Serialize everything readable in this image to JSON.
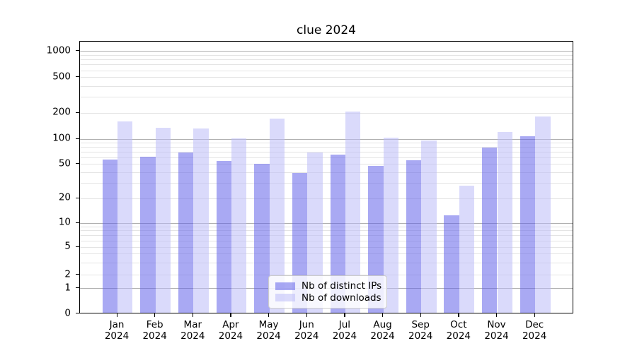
{
  "title": "clue 2024",
  "chart_data": {
    "type": "bar",
    "title": "clue 2024",
    "categories": [
      "Jan 2024",
      "Feb 2024",
      "Mar 2024",
      "Apr 2024",
      "May 2024",
      "Jun 2024",
      "Jul 2024",
      "Aug 2024",
      "Sep 2024",
      "Oct 2024",
      "Nov 2024",
      "Dec 2024"
    ],
    "series": [
      {
        "name": "Nb of distinct IPs",
        "color": "#6363e9",
        "alpha": 0.55,
        "values": [
          55,
          59,
          66,
          53,
          49,
          38,
          63,
          46,
          54,
          12,
          76,
          103
        ]
      },
      {
        "name": "Nb of downloads",
        "color": "#bbbbf7",
        "alpha": 0.55,
        "values": [
          155,
          131,
          129,
          99,
          168,
          66,
          202,
          100,
          93,
          27,
          117,
          176
        ]
      }
    ],
    "yscale": "symlog",
    "ylim": [
      0,
      1200
    ],
    "yticks": [
      0,
      1,
      2,
      5,
      10,
      20,
      50,
      100,
      200,
      500,
      1000
    ],
    "grid": "major and minor horizontal gridlines",
    "legend_position": "lower center"
  },
  "legend": {
    "items": [
      {
        "label": "Nb of distinct IPs"
      },
      {
        "label": "Nb of downloads"
      }
    ]
  },
  "colors": {
    "bar_ips_rendered": "#a9a9f3",
    "bar_downloads_rendered": "#d9d9fa",
    "grid_major": "#b0b0b0",
    "grid_minor": "#e4e4e4",
    "axis": "#000000",
    "background": "#ffffff"
  }
}
